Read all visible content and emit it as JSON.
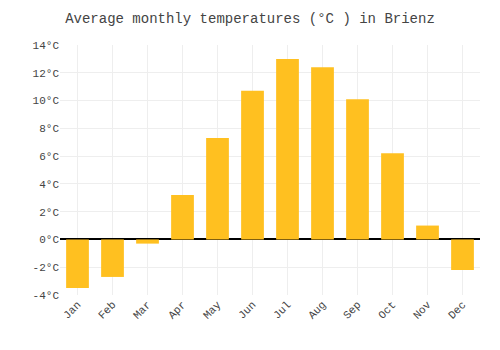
{
  "chart_data": {
    "type": "bar",
    "title": "Average monthly temperatures (°C ) in Brienz",
    "categories": [
      "Jan",
      "Feb",
      "Mar",
      "Apr",
      "May",
      "Jun",
      "Jul",
      "Aug",
      "Sep",
      "Oct",
      "Nov",
      "Dec"
    ],
    "values": [
      -3.5,
      -2.7,
      -0.3,
      3.2,
      7.3,
      10.7,
      13.0,
      12.4,
      10.1,
      6.2,
      1.0,
      -2.2
    ],
    "color": "#FFC020",
    "ylim": [
      -4,
      14
    ],
    "yticks": [
      {
        "value": -4,
        "label": "-4°C"
      },
      {
        "value": -2,
        "label": "-2°C"
      },
      {
        "value": 0,
        "label": "0°C"
      },
      {
        "value": 2,
        "label": "2°C"
      },
      {
        "value": 4,
        "label": "4°C"
      },
      {
        "value": 6,
        "label": "6°C"
      },
      {
        "value": 8,
        "label": "8°C"
      },
      {
        "value": 10,
        "label": "10°C"
      },
      {
        "value": 12,
        "label": "12°C"
      },
      {
        "value": 14,
        "label": "14°C"
      }
    ],
    "grid": true
  }
}
